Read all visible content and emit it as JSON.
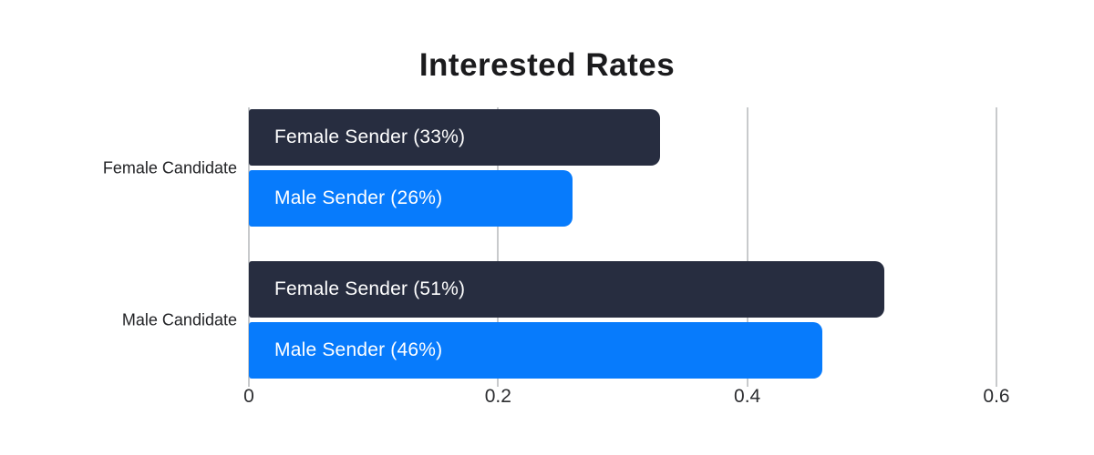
{
  "chart_data": {
    "type": "bar",
    "orientation": "horizontal",
    "title": "Interested Rates",
    "categories": [
      "Female Candidate",
      "Male Candidate"
    ],
    "series": [
      {
        "name": "Female Sender",
        "color": "#272d40",
        "values": [
          0.33,
          0.51
        ],
        "bar_labels": [
          "Female Sender (33%)",
          "Female Sender (51%)"
        ]
      },
      {
        "name": "Male Sender",
        "color": "#077bfc",
        "values": [
          0.26,
          0.46
        ],
        "bar_labels": [
          "Male Sender (26%)",
          "Male Sender (46%)"
        ]
      }
    ],
    "xlim": [
      0,
      0.6
    ],
    "xticks": [
      0,
      0.2,
      0.4,
      0.6
    ],
    "xtick_labels": [
      "0",
      "0.2",
      "0.4",
      "0.6"
    ],
    "grid": "vertical",
    "colors": {
      "bar_text": "#ffffff",
      "gridline": "#c8cacc",
      "title_text": "#1b1b1d",
      "axis_text": "#2c2d30",
      "category_text": "#222326",
      "background": "#ffffff"
    },
    "legend": "none"
  }
}
